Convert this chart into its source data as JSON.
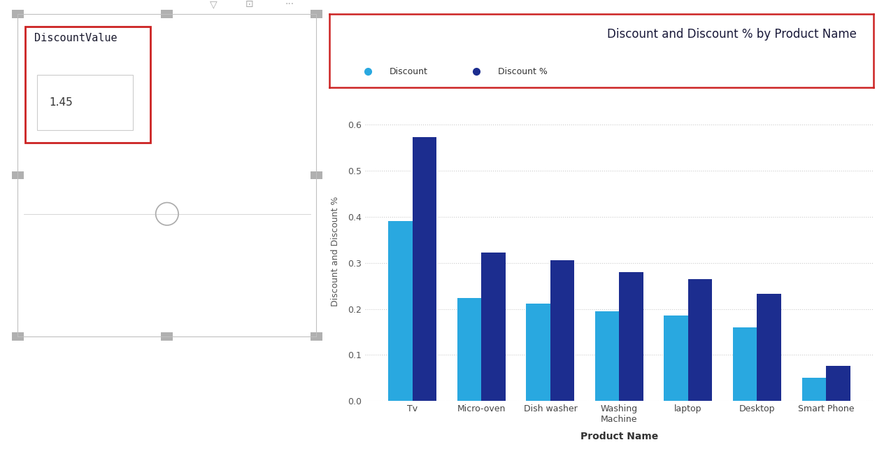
{
  "title": "Discount and Discount % by Product Name",
  "legend": [
    "Discount",
    "Discount %"
  ],
  "legend_colors": [
    "#29A8E0",
    "#1C2D8F"
  ],
  "xlabel": "Product Name",
  "ylabel": "Discount and Discount %",
  "categories": [
    "Tv",
    "Micro-oven",
    "Dish washer",
    "Washing\nMachine",
    "laptop",
    "Desktop",
    "Smart Phone"
  ],
  "discount": [
    0.39,
    0.223,
    0.212,
    0.194,
    0.185,
    0.16,
    0.05
  ],
  "discount_pct": [
    0.572,
    0.322,
    0.305,
    0.28,
    0.264,
    0.232,
    0.076
  ],
  "bar_color_discount": "#29A8E0",
  "bar_color_pct": "#1C2D8F",
  "ylim": [
    0.0,
    0.65
  ],
  "yticks": [
    0.0,
    0.1,
    0.2,
    0.3,
    0.4,
    0.5,
    0.6
  ],
  "background_color": "#FFFFFF",
  "grid_color": "#CCCCCC",
  "title_box_color": "#CC2222",
  "left_panel_border": "#C0C0C0",
  "left_slicer_label": "DiscountValue",
  "left_slicer_value": "1.45",
  "left_slicer_box_color": "#CC2222",
  "circle_color": "#AAAAAA",
  "handle_color": "#B0B0B0"
}
